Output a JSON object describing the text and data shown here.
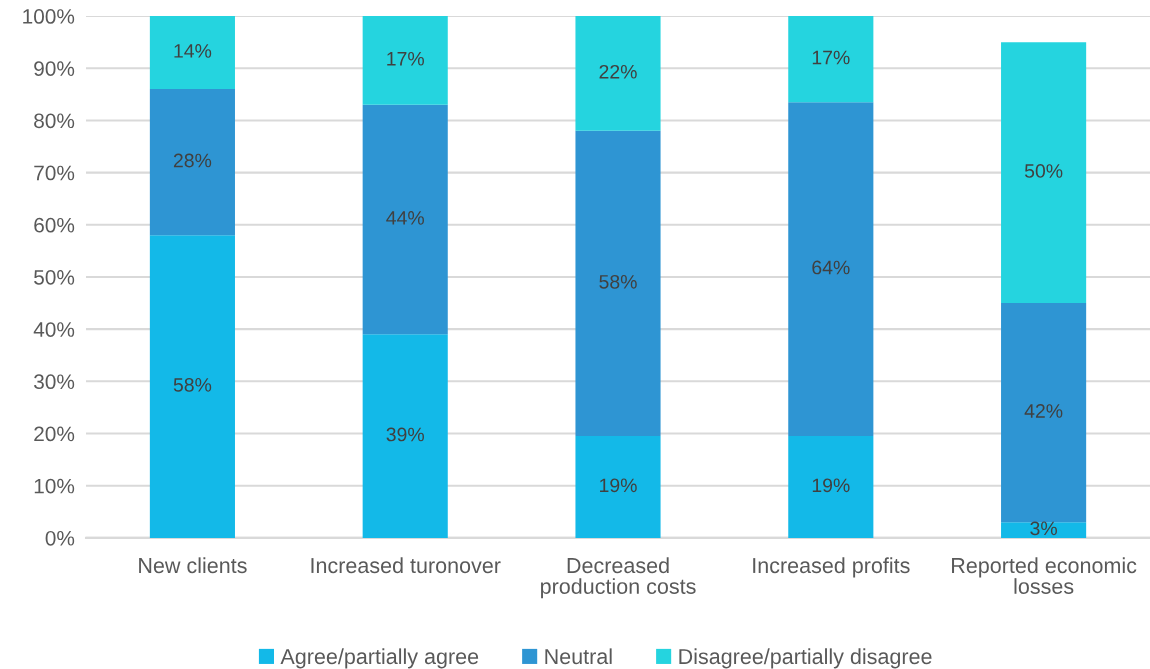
{
  "chart_data": {
    "type": "bar",
    "stacked": true,
    "categories": [
      "New clients",
      "Increased turonover",
      "Decreased\nproduction costs",
      "Increased profits",
      "Reported economic\nlosses"
    ],
    "series": [
      {
        "name": "Agree/partially agree",
        "color": "#13b9e8",
        "values": [
          58,
          39,
          19.5,
          19.5,
          3
        ],
        "value_labels": [
          "58%",
          "39%",
          "19%",
          "19%",
          "3%"
        ]
      },
      {
        "name": "Neutral",
        "color": "#2e95d3",
        "values": [
          28,
          44,
          58.5,
          64,
          42
        ],
        "value_labels": [
          "28%",
          "44%",
          "58%",
          "64%",
          "42%"
        ]
      },
      {
        "name": "Disagree/partially disagree",
        "color": "#25d4df",
        "values": [
          14,
          17,
          22,
          16.5,
          50
        ],
        "value_labels": [
          "14%",
          "17%",
          "22%",
          "17%",
          "50%"
        ]
      }
    ],
    "ylim": [
      0,
      100
    ],
    "yticks": [
      {
        "value": 0,
        "label": "0%"
      },
      {
        "value": 10,
        "label": "10%"
      },
      {
        "value": 20,
        "label": "20%"
      },
      {
        "value": 30,
        "label": "30%"
      },
      {
        "value": 40,
        "label": "40%"
      },
      {
        "value": 50,
        "label": "50%"
      },
      {
        "value": 60,
        "label": "60%"
      },
      {
        "value": 70,
        "label": "70%"
      },
      {
        "value": 80,
        "label": "80%"
      },
      {
        "value": 90,
        "label": "90%"
      },
      {
        "value": 100,
        "label": "100%"
      }
    ],
    "grid": "y",
    "legend": "bottom"
  }
}
